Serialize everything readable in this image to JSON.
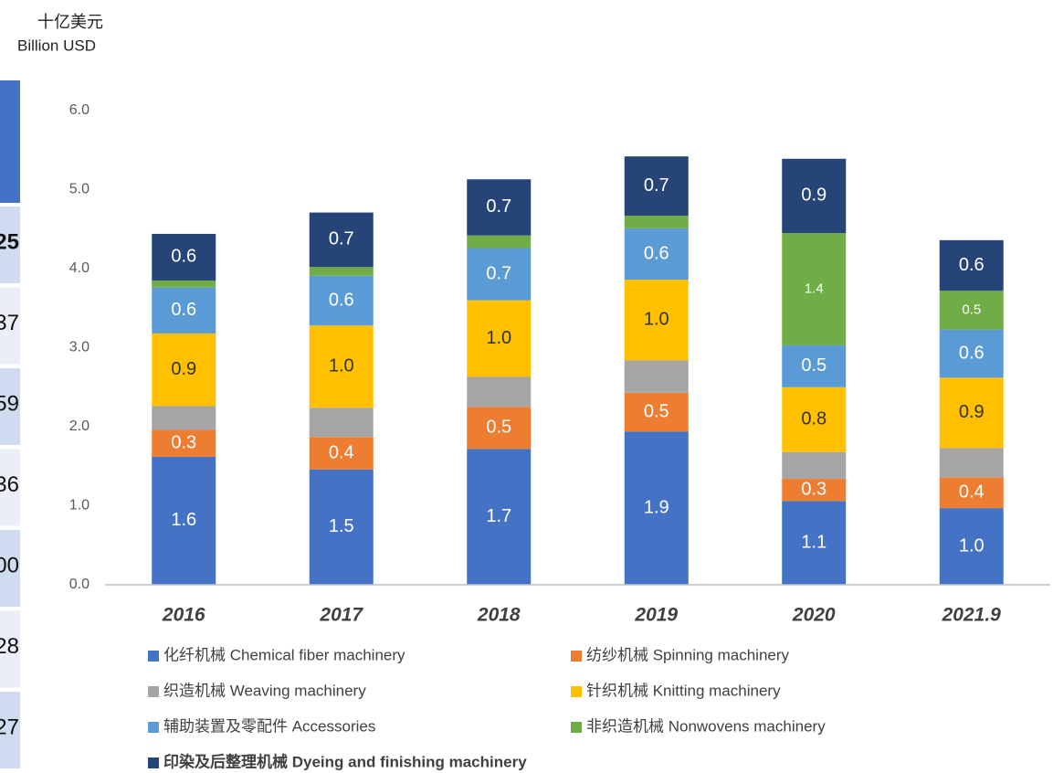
{
  "chart_data": {
    "type": "stacked_bar",
    "y_label": "十亿美元",
    "y_label_en": "Billion USD",
    "categories": [
      "2016",
      "2017",
      "2018",
      "2019",
      "2020",
      "2021.9"
    ],
    "ylim": [
      0,
      6
    ],
    "yticks": [
      {
        "value": 0,
        "label": "0.0"
      },
      {
        "value": 1,
        "label": "1.0"
      },
      {
        "value": 2,
        "label": "2.0"
      },
      {
        "value": 3,
        "label": "3.0"
      },
      {
        "value": 4,
        "label": "4.0"
      },
      {
        "value": 5,
        "label": "5.0"
      },
      {
        "value": 6,
        "label": "6.0"
      }
    ],
    "series": [
      {
        "name": "化纤机械 Chemical fiber machinery",
        "color": "#4472c4",
        "label_color": "#ffffff",
        "values": [
          1.62,
          1.46,
          1.72,
          1.94,
          1.06,
          0.97
        ],
        "value_labels": [
          "1.6",
          "1.5",
          "1.7",
          "1.9",
          "1.1",
          "1.0"
        ]
      },
      {
        "name": "纺纱机械 Spinning machinery",
        "color": "#ed7d31",
        "label_color": "#ffffff",
        "values": [
          0.34,
          0.41,
          0.53,
          0.49,
          0.28,
          0.39
        ],
        "value_labels": [
          "0.3",
          "0.4",
          "0.5",
          "0.5",
          "0.3",
          "0.4"
        ]
      },
      {
        "name": "织造机械 Weaving machinery",
        "color": "#a5a5a5",
        "label_color": "#ffffff",
        "values": [
          0.3,
          0.37,
          0.38,
          0.41,
          0.34,
          0.37
        ],
        "value_labels": [
          null,
          null,
          null,
          null,
          null,
          null
        ]
      },
      {
        "name": "针织机械 Knitting machinery",
        "color": "#ffc000",
        "label_color": "#333333",
        "values": [
          0.92,
          1.04,
          0.97,
          1.02,
          0.82,
          0.89
        ],
        "value_labels": [
          "0.9",
          "1.0",
          "1.0",
          "1.0",
          "0.8",
          "0.9"
        ]
      },
      {
        "name": "辅助装置及零配件 Accessories",
        "color": "#5b9bd5",
        "label_color": "#ffffff",
        "values": [
          0.58,
          0.63,
          0.66,
          0.65,
          0.53,
          0.61
        ],
        "value_labels": [
          "0.6",
          "0.6",
          "0.7",
          "0.6",
          "0.5",
          "0.6"
        ]
      },
      {
        "name": "非织造机械 Nonwovens machinery",
        "color": "#70ad47",
        "label_color": "#ffffff",
        "values": [
          0.09,
          0.11,
          0.16,
          0.16,
          1.42,
          0.49
        ],
        "value_labels": [
          null,
          null,
          null,
          null,
          "1.4",
          "0.5"
        ]
      },
      {
        "name": "印染及后整理机械 Dyeing and finishing machinery",
        "color": "#264478",
        "label_color": "#ffffff",
        "values": [
          0.59,
          0.69,
          0.71,
          0.75,
          0.94,
          0.64
        ],
        "value_labels": [
          "0.6",
          "0.7",
          "0.7",
          "0.7",
          "0.9",
          "0.6"
        ]
      }
    ]
  },
  "clipped_table": {
    "cells": [
      "25",
      "37",
      "59",
      "36",
      "00",
      "28",
      "27"
    ]
  }
}
